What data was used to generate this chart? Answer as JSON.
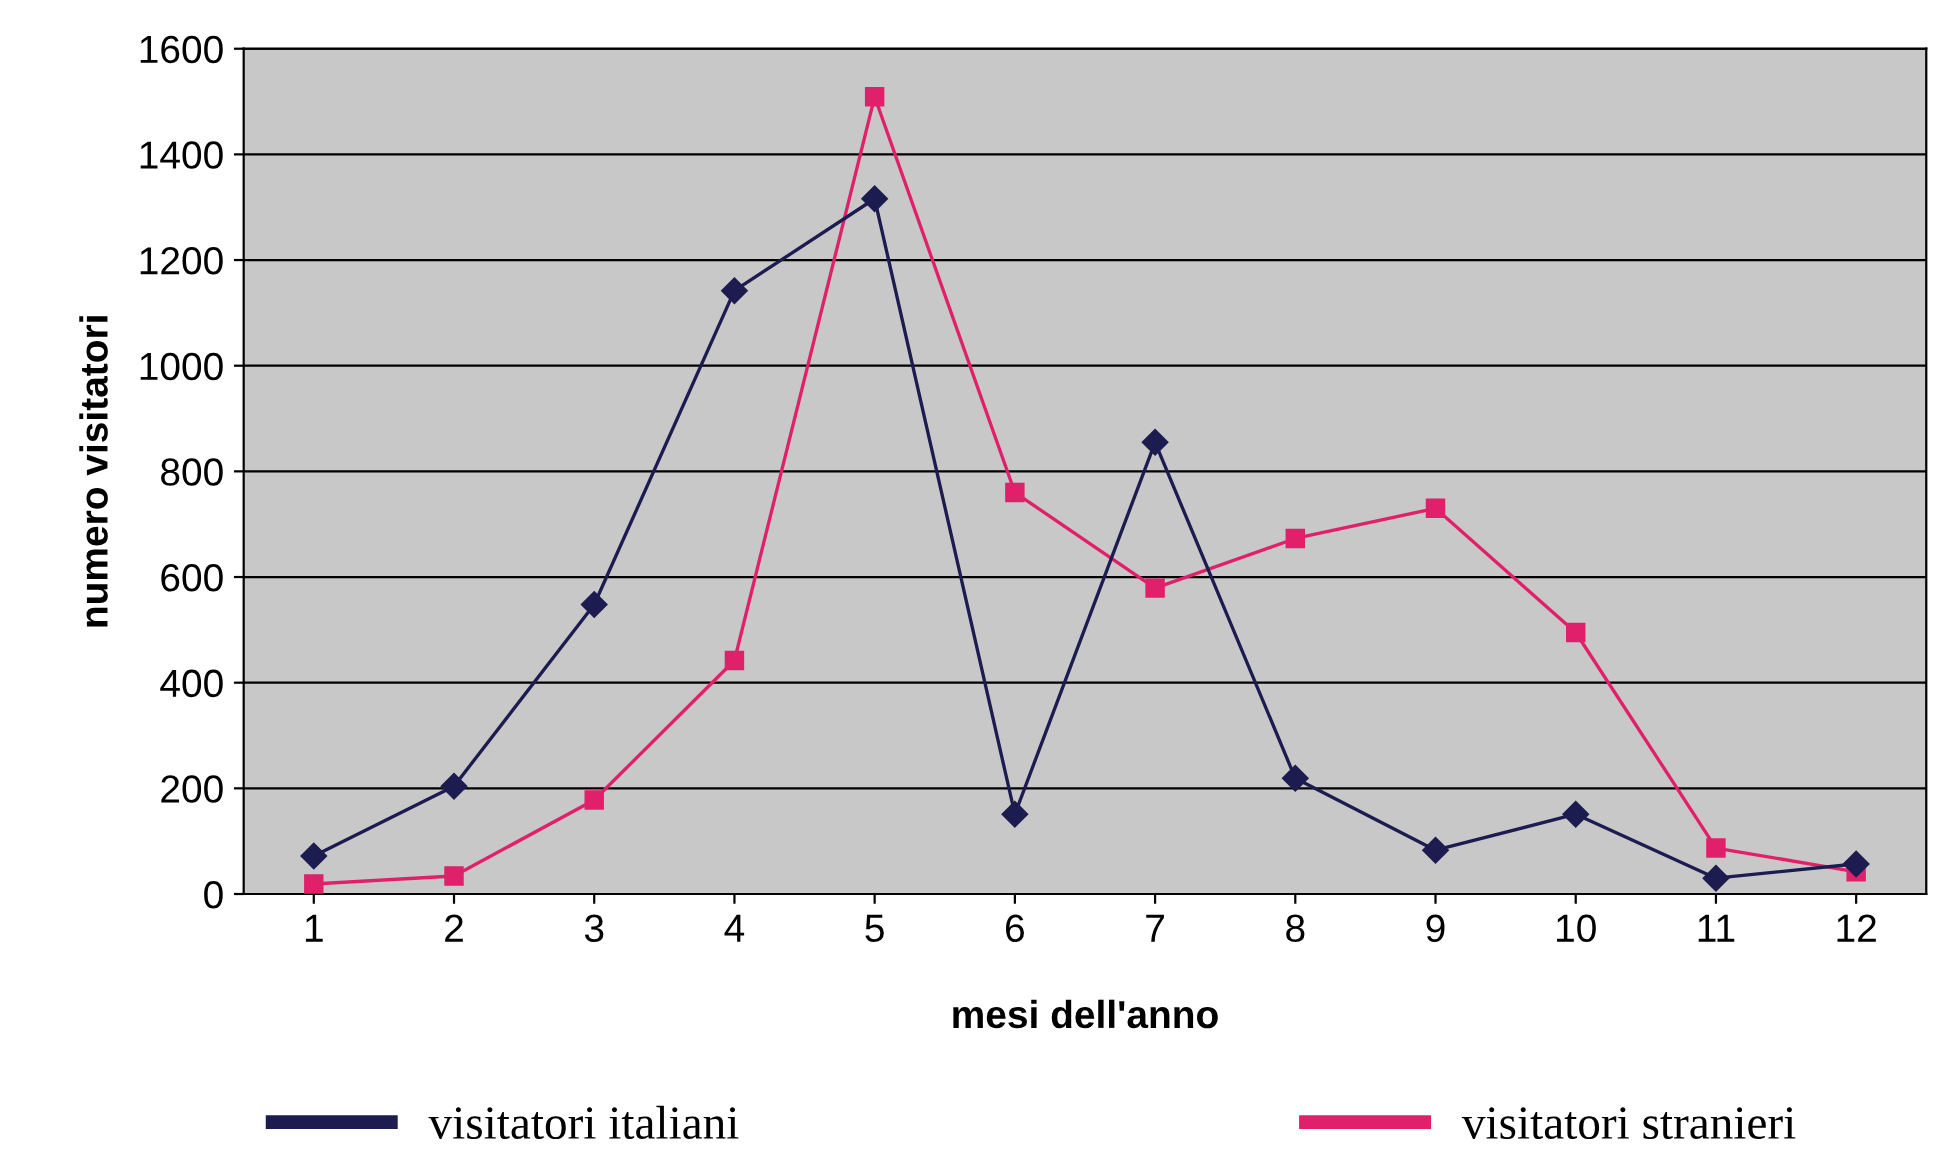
{
  "chart_data": {
    "type": "line",
    "xlabel": "mesi dell'anno",
    "ylabel": "numero visitatori",
    "categories": [
      "1",
      "2",
      "3",
      "4",
      "5",
      "6",
      "7",
      "8",
      "9",
      "10",
      "11",
      "12"
    ],
    "series": [
      {
        "name": "visitatori italiani",
        "color": "#1c1c50",
        "marker": "diamond",
        "values": [
          72,
          204,
          548,
          1142,
          1316,
          151,
          855,
          219,
          83,
          151,
          30,
          57
        ]
      },
      {
        "name": "visitatori stranieri",
        "color": "#e0206a",
        "marker": "square",
        "values": [
          19,
          34,
          178,
          442,
          1509,
          760,
          579,
          673,
          730,
          495,
          87,
          42
        ]
      }
    ],
    "ylim": [
      0,
      1600
    ],
    "yticks": [
      0,
      200,
      400,
      600,
      800,
      1000,
      1200,
      1400,
      1600
    ],
    "grid": "y",
    "legend": "bottom",
    "line_style": "solid"
  }
}
